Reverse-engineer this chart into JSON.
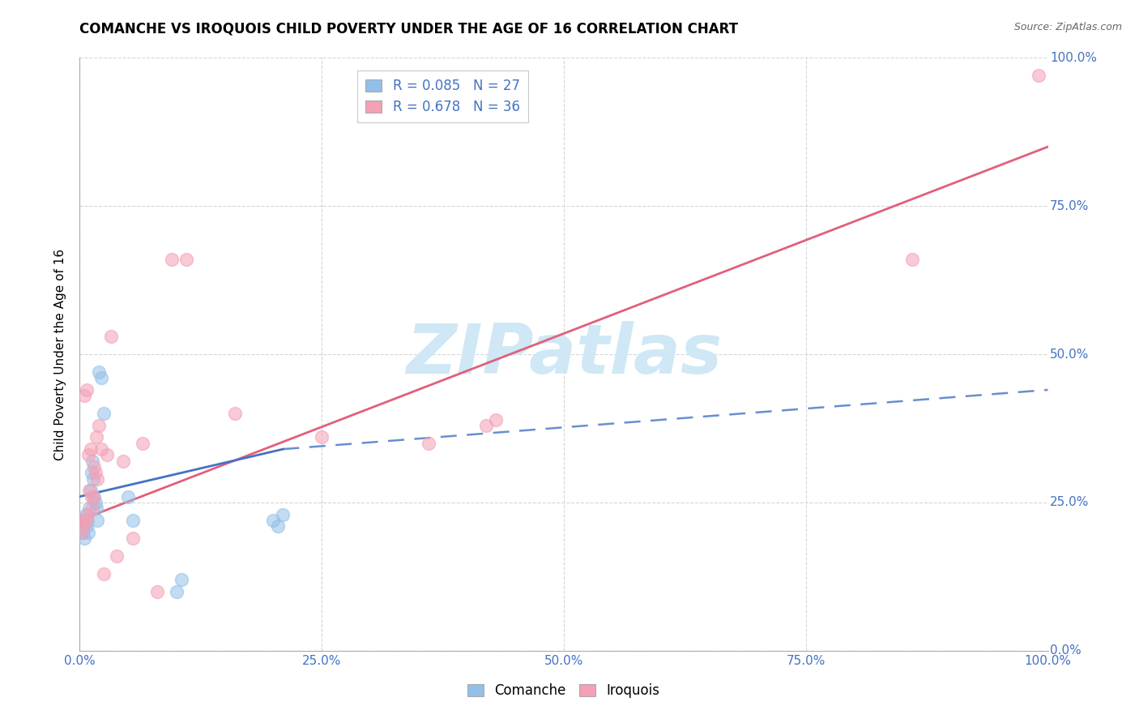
{
  "title": "COMANCHE VS IROQUOIS CHILD POVERTY UNDER THE AGE OF 16 CORRELATION CHART",
  "source": "Source: ZipAtlas.com",
  "ylabel": "Child Poverty Under the Age of 16",
  "comanche_R": 0.085,
  "comanche_N": 27,
  "iroquois_R": 0.678,
  "iroquois_N": 36,
  "comanche_color": "#92c0e8",
  "iroquois_color": "#f4a0b5",
  "comanche_line_color": "#4472c4",
  "iroquois_line_color": "#e0607a",
  "watermark_color": "#d0e8f5",
  "xlim": [
    0,
    1
  ],
  "ylim": [
    0,
    1
  ],
  "xticks": [
    0.0,
    0.25,
    0.5,
    0.75,
    1.0
  ],
  "yticks": [
    0.0,
    0.25,
    0.5,
    0.75,
    1.0
  ],
  "comanche_x": [
    0.002,
    0.003,
    0.004,
    0.005,
    0.006,
    0.007,
    0.008,
    0.009,
    0.01,
    0.011,
    0.012,
    0.013,
    0.014,
    0.015,
    0.016,
    0.017,
    0.018,
    0.02,
    0.022,
    0.025,
    0.05,
    0.055,
    0.1,
    0.105,
    0.2,
    0.205,
    0.21
  ],
  "comanche_y": [
    0.22,
    0.2,
    0.21,
    0.19,
    0.23,
    0.21,
    0.22,
    0.2,
    0.24,
    0.27,
    0.3,
    0.32,
    0.29,
    0.26,
    0.25,
    0.24,
    0.22,
    0.47,
    0.46,
    0.4,
    0.26,
    0.22,
    0.1,
    0.12,
    0.22,
    0.21,
    0.23
  ],
  "iroquois_x": [
    0.002,
    0.003,
    0.004,
    0.005,
    0.006,
    0.007,
    0.008,
    0.009,
    0.01,
    0.011,
    0.012,
    0.013,
    0.014,
    0.015,
    0.016,
    0.017,
    0.018,
    0.02,
    0.022,
    0.025,
    0.028,
    0.032,
    0.038,
    0.045,
    0.055,
    0.065,
    0.08,
    0.095,
    0.11,
    0.16,
    0.25,
    0.36,
    0.42,
    0.43,
    0.86,
    0.99
  ],
  "iroquois_y": [
    0.2,
    0.22,
    0.21,
    0.43,
    0.22,
    0.44,
    0.23,
    0.33,
    0.27,
    0.34,
    0.26,
    0.24,
    0.26,
    0.31,
    0.3,
    0.36,
    0.29,
    0.38,
    0.34,
    0.13,
    0.33,
    0.53,
    0.16,
    0.32,
    0.19,
    0.35,
    0.1,
    0.66,
    0.66,
    0.4,
    0.36,
    0.35,
    0.38,
    0.39,
    0.66,
    0.97
  ],
  "iroquois_line_x0": 0.0,
  "iroquois_line_y0": 0.22,
  "iroquois_line_x1": 1.0,
  "iroquois_line_y1": 0.85,
  "comanche_line_solid_x0": 0.0,
  "comanche_line_solid_y0": 0.26,
  "comanche_line_solid_x1": 0.21,
  "comanche_line_solid_y1": 0.34,
  "comanche_line_dash_x0": 0.21,
  "comanche_line_dash_y0": 0.34,
  "comanche_line_dash_x1": 1.0,
  "comanche_line_dash_y1": 0.44
}
